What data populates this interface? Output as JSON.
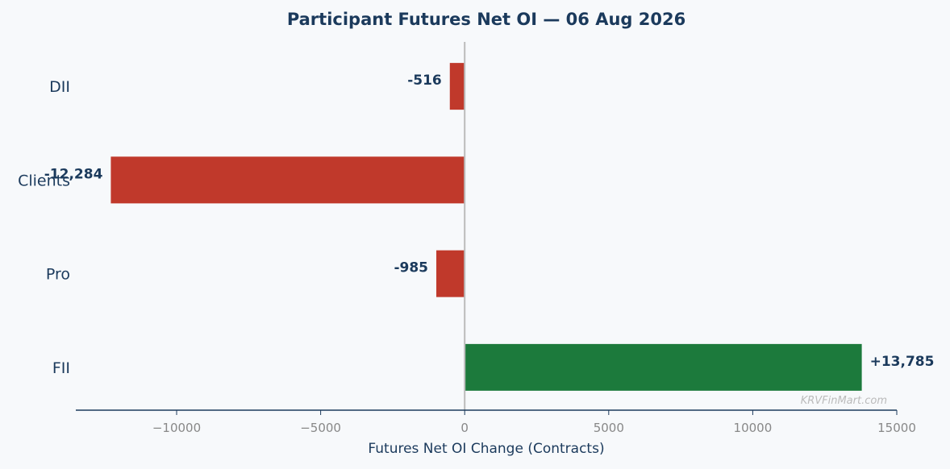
{
  "chart_data": {
    "type": "bar",
    "orientation": "horizontal",
    "title": "Participant Futures Net OI — 06 Aug 2026",
    "xlabel": "Futures Net OI Change (Contracts)",
    "ylabel": "",
    "categories": [
      "DII",
      "Clients",
      "Pro",
      "FII"
    ],
    "values": [
      -516,
      -12284,
      -985,
      13785
    ],
    "value_labels": [
      "-516",
      "-12,284",
      "-985",
      "+13,785"
    ],
    "xlim": [
      -13500,
      15000
    ],
    "xticks": [
      -10000,
      -5000,
      0,
      5000,
      10000,
      15000
    ],
    "xtick_labels": [
      "−10000",
      "−5000",
      "0",
      "5000",
      "10000",
      "15000"
    ],
    "grid": false,
    "colors": {
      "negative": "#c0392b",
      "positive": "#1c7a3c",
      "zero_line": "#bbbbbb",
      "axis": "#1b3a5c",
      "background": "#f7f9fb"
    }
  },
  "watermark": "KRVFinMart.com"
}
